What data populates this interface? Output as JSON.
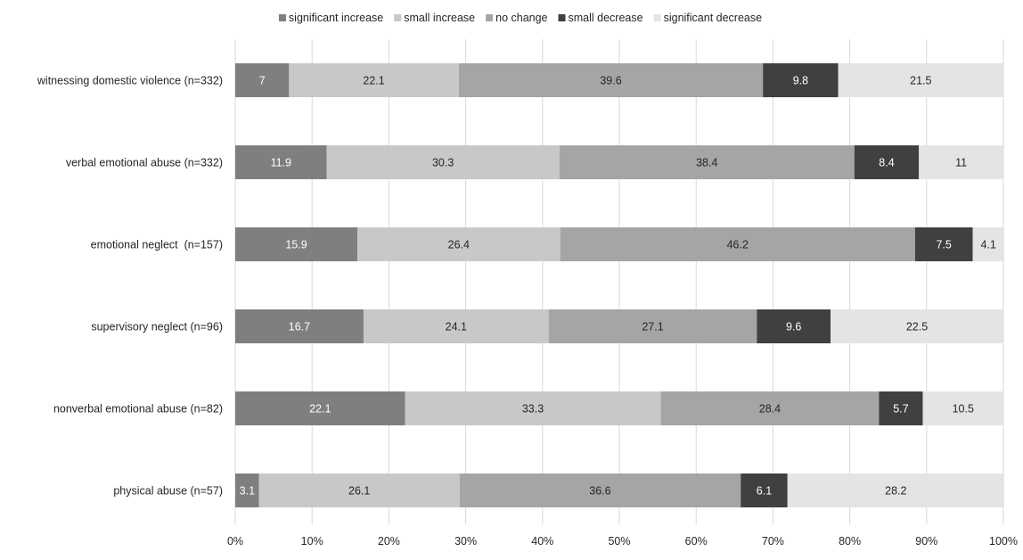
{
  "chart_data": {
    "type": "bar",
    "orientation": "horizontal",
    "stacked": true,
    "percent_stacked": true,
    "title": "",
    "xlabel": "",
    "ylabel": "",
    "xlim": [
      0,
      100
    ],
    "x_ticks": [
      "0%",
      "10%",
      "20%",
      "30%",
      "40%",
      "50%",
      "60%",
      "70%",
      "80%",
      "90%",
      "100%"
    ],
    "grid": "vertical",
    "legend_position": "top",
    "categories": [
      "witnessing domestic violence (n=332)",
      "verbal emotional abuse (n=332)",
      "emotional neglect  (n=157)",
      "supervisory neglect (n=96)",
      "nonverbal emotional abuse (n=82)",
      "physical abuse (n=57)"
    ],
    "series": [
      {
        "name": "significant increase",
        "color": "#7f7f7f",
        "label_color": "#ffffff",
        "values": [
          7,
          11.9,
          15.9,
          16.7,
          22.1,
          3.1
        ]
      },
      {
        "name": "small increase",
        "color": "#c8c8c8",
        "label_color": "#262626",
        "values": [
          22.1,
          30.3,
          26.4,
          24.1,
          33.3,
          26.1
        ]
      },
      {
        "name": "no change",
        "color": "#a5a5a5",
        "label_color": "#262626",
        "values": [
          39.6,
          38.4,
          46.2,
          27.1,
          28.4,
          36.6
        ]
      },
      {
        "name": "small decrease",
        "color": "#404040",
        "label_color": "#ffffff",
        "values": [
          9.8,
          8.4,
          7.5,
          9.6,
          5.7,
          6.1
        ]
      },
      {
        "name": "significant decrease",
        "color": "#e4e4e4",
        "label_color": "#262626",
        "values": [
          21.5,
          11,
          4.1,
          22.5,
          10.5,
          28.2
        ]
      }
    ]
  }
}
